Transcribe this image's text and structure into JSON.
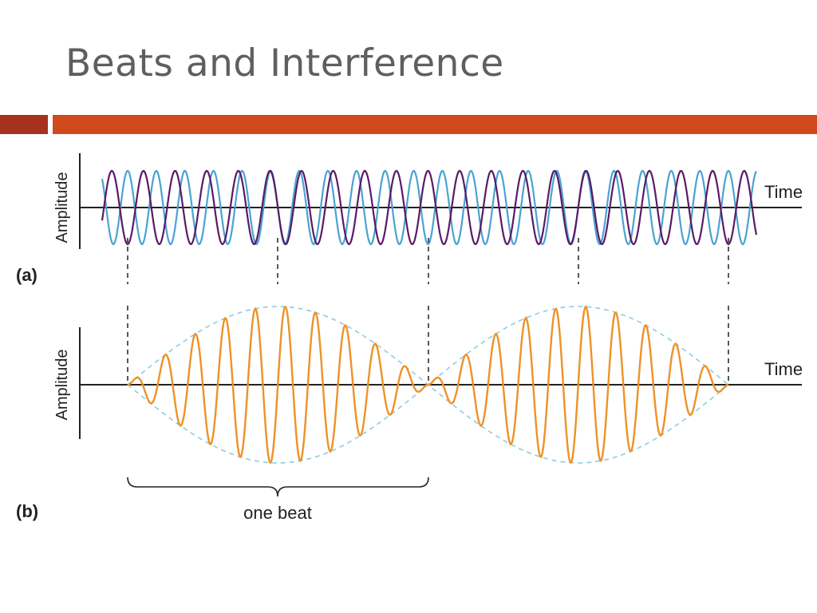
{
  "slide": {
    "title": "Beats and Interference"
  },
  "colors": {
    "title_text": "#5f5f5f",
    "bar_dark": "#a5311f",
    "bar_main": "#d14a1e",
    "wave_light_blue": "#4aa3d1",
    "wave_purple": "#5a1a66",
    "wave_resultant": "#ee9227",
    "envelope": "#8fcbe2"
  },
  "panels": {
    "a": {
      "label": "(a)",
      "ylabel": "Amplitude",
      "xlabel": "Time"
    },
    "b": {
      "label": "(b)",
      "ylabel": "Amplitude",
      "xlabel": "Time"
    }
  },
  "beat_label": "one beat"
}
